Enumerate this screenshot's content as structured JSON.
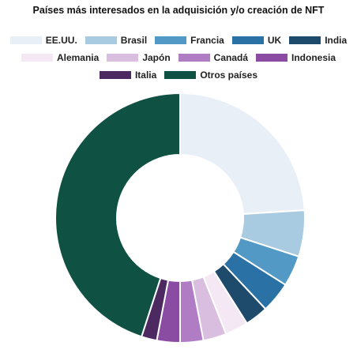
{
  "chart_data": {
    "type": "pie",
    "title": "Países más interesados en la adquisición y/o creación de NFT",
    "categories": [
      "EE.UU.",
      "Brasil",
      "Francia",
      "UK",
      "India",
      "Alemania",
      "Japón",
      "Canadá",
      "Indonesia",
      "Italia",
      "Otros países"
    ],
    "values": [
      24,
      6,
      4,
      4,
      3,
      3,
      3,
      3,
      3,
      2,
      45
    ],
    "colors": [
      "#e8eff7",
      "#a9cbe2",
      "#5399c6",
      "#2a72a6",
      "#1e4a6b",
      "#f4e8f5",
      "#d9bedf",
      "#b07cc4",
      "#8a4ca3",
      "#4d2961",
      "#0f5143"
    ],
    "legend_position": "top",
    "donut": true
  }
}
